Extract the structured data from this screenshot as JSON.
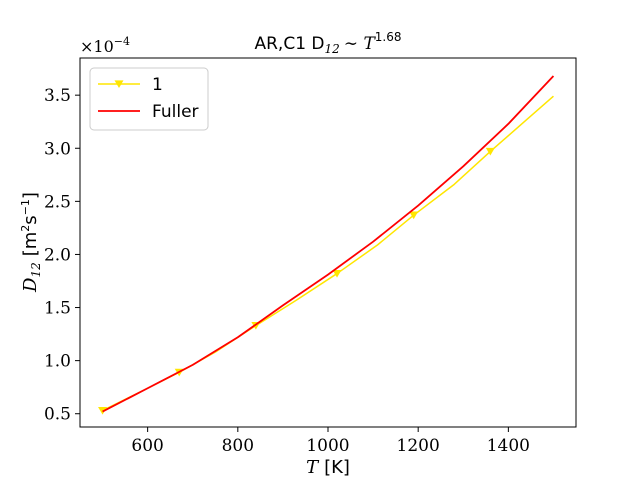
{
  "chart_data": {
    "type": "line",
    "title": "AR,C1 D",
    "title_sub": "12",
    "title_tilde": "∼ T",
    "title_exp": "1.68",
    "xlabel_var": "T",
    "xlabel_unit": "[K]",
    "ylabel_var": "D",
    "ylabel_sub": "12",
    "ylabel_unit_open": "[m",
    "ylabel_unit_m2": "2",
    "ylabel_unit_s": "s",
    "ylabel_unit_sexp": "−1",
    "ylabel_unit_close": "]",
    "y_multiplier": "×10",
    "y_multiplier_exp": "−4",
    "xlim": [
      450,
      1550
    ],
    "ylim": [
      0.375,
      3.85
    ],
    "xticks": [
      600,
      800,
      1000,
      1200,
      1400
    ],
    "yticks": [
      0.5,
      1.0,
      1.5,
      2.0,
      2.5,
      3.0,
      3.5
    ],
    "ytick_labels": [
      "0.5",
      "1.0",
      "1.5",
      "2.0",
      "2.5",
      "3.0",
      "3.5"
    ],
    "grid": false,
    "legend_position": "top-left",
    "series": [
      {
        "name": "1",
        "color": "#ffe600",
        "marker": "triangle-down",
        "x": [
          500,
          600,
          670,
          750,
          840,
          930,
          1020,
          1110,
          1190,
          1280,
          1360,
          1430,
          1500
        ],
        "y": [
          0.53,
          0.74,
          0.89,
          1.08,
          1.33,
          1.57,
          1.82,
          2.09,
          2.37,
          2.66,
          2.97,
          3.23,
          3.49
        ],
        "marker_x": [
          500,
          670,
          840,
          1020,
          1190,
          1360
        ],
        "marker_y": [
          0.53,
          0.89,
          1.33,
          1.82,
          2.37,
          2.97
        ]
      },
      {
        "name": "Fuller",
        "color": "#ff0000",
        "marker": "none",
        "x": [
          500,
          600,
          700,
          800,
          900,
          1000,
          1100,
          1200,
          1300,
          1400,
          1500
        ],
        "y": [
          0.52,
          0.74,
          0.96,
          1.22,
          1.52,
          1.81,
          2.12,
          2.46,
          2.83,
          3.23,
          3.68
        ]
      }
    ]
  }
}
